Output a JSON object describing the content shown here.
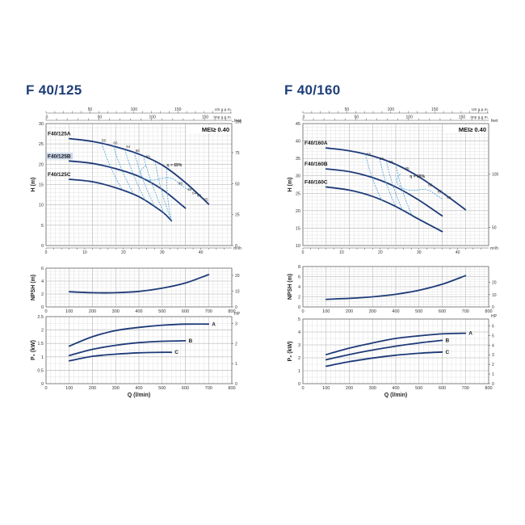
{
  "colors": {
    "curve": "#1d3a78",
    "eff": "#4aa3d8",
    "grid": "#b9b9b9",
    "gridMinor": "#e1e1e1",
    "title": "#1f3f7a",
    "badge": "#c9d6ea"
  },
  "chart_data": [
    {
      "type": "line",
      "title": "F 40/125",
      "mei_label": "MEI≥ 0.40",
      "top_units_label": "US g.p.m.",
      "top_imp_label": "Imp g.p.m.",
      "top_us_ticks": [
        "50",
        "100",
        "150"
      ],
      "top_imp_ticks": [
        "0",
        "50",
        "100",
        "150"
      ],
      "m3h_label": "m³/h",
      "m3h_ticks": [
        "0",
        "10",
        "20",
        "30",
        "40"
      ],
      "xlabel": "Q (l/min)",
      "xlim": [
        0,
        800
      ],
      "xticks": [
        "0",
        "100",
        "200",
        "300",
        "400",
        "500",
        "600",
        "700",
        "800"
      ],
      "head": {
        "ylabel": "H (m)",
        "ylim": [
          0,
          30
        ],
        "yticks": [
          "0",
          "5",
          "10",
          "15",
          "20",
          "25",
          "30"
        ],
        "right_label": "feet",
        "right_ticks": [
          "0",
          "25",
          "50",
          "75",
          "100"
        ],
        "series": [
          {
            "name": "F40/125A",
            "x": [
              100,
              200,
              300,
              400,
              500,
              600,
              700
            ],
            "y": [
              26.3,
              25.6,
              24.3,
              22.5,
              19.8,
              15.5,
              10.2
            ]
          },
          {
            "name": "F40/125B",
            "x": [
              100,
              200,
              300,
              400,
              500,
              600
            ],
            "y": [
              20.8,
              20.2,
              18.9,
              17.0,
              13.8,
              9.2
            ]
          },
          {
            "name": "F40/125C",
            "x": [
              100,
              200,
              300,
              400,
              500,
              540
            ],
            "y": [
              16.3,
              15.7,
              14.2,
              12.0,
              8.3,
              6.1
            ]
          }
        ],
        "eff_labels": [
          "55",
          "60",
          "64",
          "66",
          "68",
          "η = 69%",
          "68",
          "66",
          "64",
          "60",
          "55"
        ]
      },
      "npsh": {
        "ylabel": "NPSH (m)",
        "ylim": [
          0,
          6
        ],
        "yticks": [
          "0",
          "2",
          "4",
          "6"
        ],
        "right_ticks": [
          "0",
          "10",
          "20"
        ],
        "series": [
          {
            "name": "",
            "x": [
              100,
              200,
              300,
              400,
              500,
              600,
              700
            ],
            "y": [
              2.35,
              2.2,
              2.2,
              2.4,
              2.9,
              3.7,
              5.0
            ]
          }
        ]
      },
      "power": {
        "ylabel": "P₂ (kW)",
        "ylim": [
          0,
          2.5
        ],
        "yticks": [
          "0",
          "0.5",
          "1",
          "1.5",
          "2",
          "2.5"
        ],
        "right_label": "HP",
        "right_ticks": [
          "0",
          "1",
          "2",
          "3"
        ],
        "series": [
          {
            "name": "A",
            "x": [
              100,
              200,
              300,
              400,
              500,
              600,
              700
            ],
            "y": [
              1.4,
              1.75,
              1.98,
              2.1,
              2.18,
              2.22,
              2.22
            ]
          },
          {
            "name": "B",
            "x": [
              100,
              200,
              300,
              400,
              500,
              600
            ],
            "y": [
              1.05,
              1.28,
              1.43,
              1.53,
              1.58,
              1.6
            ]
          },
          {
            "name": "C",
            "x": [
              100,
              200,
              300,
              400,
              500,
              540
            ],
            "y": [
              0.85,
              1.02,
              1.1,
              1.15,
              1.17,
              1.17
            ]
          }
        ]
      }
    },
    {
      "type": "line",
      "title": "F 40/160",
      "mei_label": "MEI≥ 0.40",
      "top_units_label": "US g.p.m.",
      "top_imp_label": "Imp g.p.m.",
      "top_us_ticks": [
        "50",
        "100",
        "150"
      ],
      "top_imp_ticks": [
        "0",
        "50",
        "100",
        "150"
      ],
      "m3h_label": "m³/h",
      "m3h_ticks": [
        "0",
        "10",
        "20",
        "30",
        "40"
      ],
      "xlabel": "Q (l/min)",
      "xlim": [
        0,
        800
      ],
      "xticks": [
        "0",
        "100",
        "200",
        "300",
        "400",
        "500",
        "600",
        "700",
        "800"
      ],
      "head": {
        "ylabel": "H (m)",
        "ylim": [
          10,
          45
        ],
        "yticks": [
          "10",
          "15",
          "20",
          "25",
          "30",
          "35",
          "40",
          "45"
        ],
        "right_label": "feet",
        "right_ticks": [
          "50",
          "100"
        ],
        "series": [
          {
            "name": "F40/160A",
            "x": [
              100,
              200,
              300,
              400,
              500,
              600,
              700
            ],
            "y": [
              38.0,
              37.2,
              35.7,
              33.3,
              29.7,
              25.2,
              20.3
            ]
          },
          {
            "name": "F40/160B",
            "x": [
              100,
              200,
              300,
              400,
              500,
              600
            ],
            "y": [
              32.0,
              31.2,
              29.5,
              26.8,
              23.0,
              18.5
            ]
          },
          {
            "name": "F40/160C",
            "x": [
              100,
              200,
              300,
              400,
              500,
              600
            ],
            "y": [
              26.8,
              25.9,
              24.1,
              21.2,
              17.5,
              14.0
            ]
          }
        ],
        "eff_labels": [
          "55",
          "60",
          "63",
          "65",
          "η = 68%",
          "65",
          "63",
          "60"
        ]
      },
      "npsh": {
        "ylabel": "NPSH (m)",
        "ylim": [
          0,
          8
        ],
        "yticks": [
          "0",
          "2",
          "4",
          "6",
          "8"
        ],
        "right_ticks": [
          "0",
          "10",
          "20"
        ],
        "series": [
          {
            "name": "",
            "x": [
              100,
              200,
              300,
              400,
              500,
              600,
              700
            ],
            "y": [
              1.5,
              1.7,
              2.0,
              2.5,
              3.3,
              4.5,
              6.2
            ]
          }
        ]
      },
      "power": {
        "ylabel": "P₂ (kW)",
        "ylim": [
          0,
          5
        ],
        "yticks": [
          "0",
          "1",
          "2",
          "3",
          "4",
          "5"
        ],
        "right_label": "HP",
        "right_ticks": [
          "0",
          "1",
          "2",
          "3",
          "4",
          "5",
          "6"
        ],
        "series": [
          {
            "name": "A",
            "x": [
              100,
              200,
              300,
              400,
              500,
              600,
              700
            ],
            "y": [
              2.25,
              2.75,
              3.15,
              3.5,
              3.7,
              3.85,
              3.9
            ]
          },
          {
            "name": "B",
            "x": [
              100,
              200,
              300,
              400,
              500,
              600
            ],
            "y": [
              1.85,
              2.25,
              2.6,
              2.9,
              3.15,
              3.35
            ]
          },
          {
            "name": "C",
            "x": [
              100,
              200,
              300,
              400,
              500,
              600
            ],
            "y": [
              1.35,
              1.7,
              1.98,
              2.2,
              2.35,
              2.45
            ]
          }
        ]
      }
    }
  ]
}
